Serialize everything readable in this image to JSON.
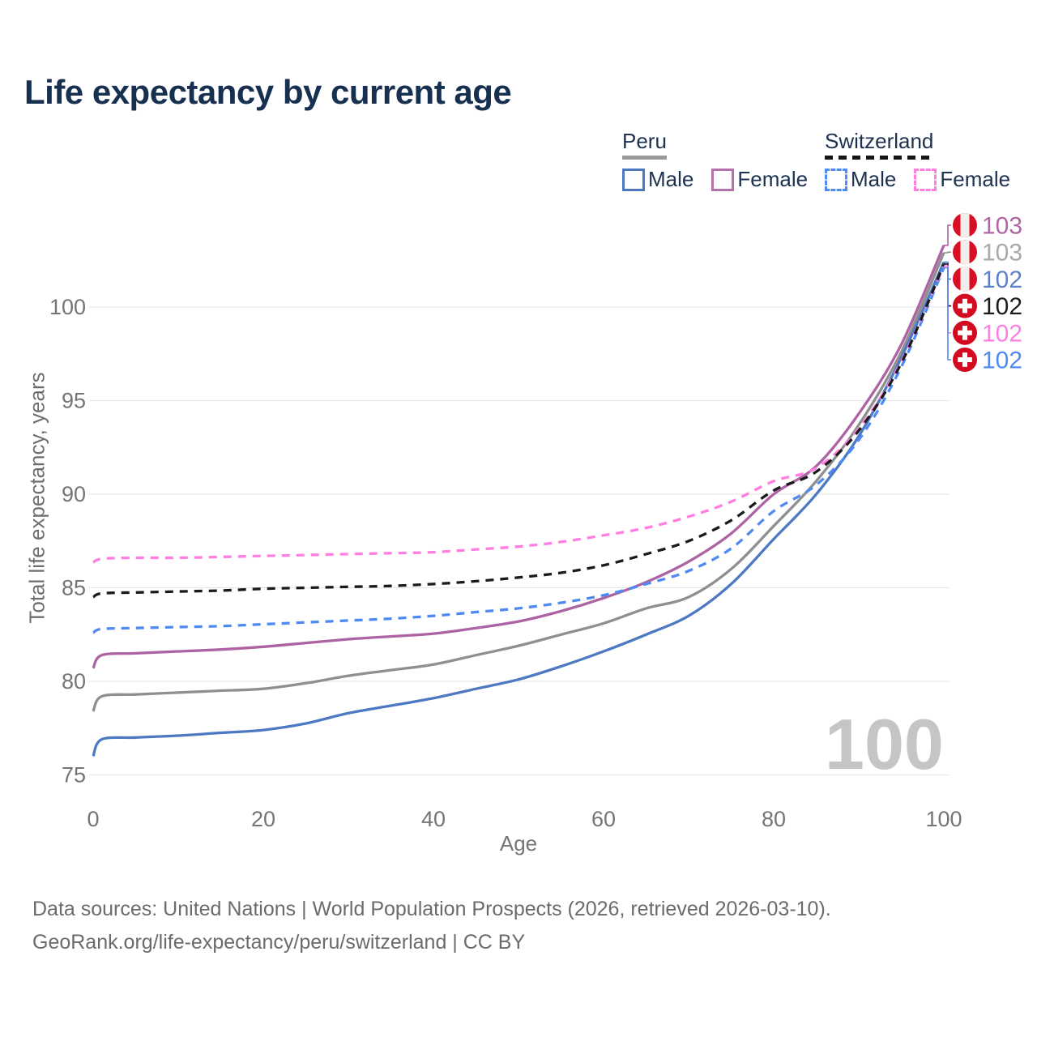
{
  "title": "Life expectancy by current age",
  "legend": {
    "position": "top-right",
    "groups": [
      {
        "country": "Peru",
        "line_style": "solid",
        "underline_color": "#9a9a9a",
        "items": [
          {
            "label": "Male",
            "color": "#4d79c2"
          },
          {
            "label": "Female",
            "color": "#b471ac"
          }
        ]
      },
      {
        "country": "Switzerland",
        "line_style": "dashed",
        "underline_color": "#151515",
        "items": [
          {
            "label": "Male",
            "color": "#4f8af2"
          },
          {
            "label": "Female",
            "color": "#ff7ee2"
          }
        ]
      }
    ]
  },
  "chart_data": {
    "type": "line",
    "title": "Life expectancy by current age",
    "xlabel": "Age",
    "ylabel": "Total life expectancy, years",
    "xlim": [
      0,
      100
    ],
    "ylim": [
      75,
      103.5
    ],
    "x_ticks": [
      0,
      20,
      40,
      60,
      80,
      100
    ],
    "y_ticks": [
      75,
      80,
      85,
      90,
      95,
      100
    ],
    "grid": "horizontal-only",
    "legend_position": "top-right",
    "watermark": "100",
    "x": [
      0,
      1,
      5,
      10,
      15,
      20,
      25,
      30,
      35,
      40,
      45,
      50,
      55,
      60,
      65,
      70,
      75,
      80,
      85,
      90,
      95,
      100
    ],
    "series": [
      {
        "name": "Peru Female",
        "id": "peru-female",
        "country": "Peru",
        "sex": "Female",
        "style": "solid",
        "color": "#ad62a3",
        "values": [
          80.7,
          81.4,
          81.5,
          81.6,
          81.7,
          81.85,
          82.05,
          82.25,
          82.4,
          82.55,
          82.85,
          83.2,
          83.75,
          84.45,
          85.3,
          86.4,
          87.9,
          90.0,
          91.5,
          94.3,
          98.0,
          103.3
        ]
      },
      {
        "name": "Peru",
        "id": "peru-all",
        "country": "Peru",
        "sex": "Both",
        "style": "solid",
        "color": "#8f8f8f",
        "values": [
          78.4,
          79.2,
          79.3,
          79.4,
          79.5,
          79.6,
          79.9,
          80.3,
          80.6,
          80.9,
          81.4,
          81.9,
          82.5,
          83.1,
          83.9,
          84.5,
          86.0,
          88.3,
          90.7,
          93.7,
          97.6,
          102.9
        ]
      },
      {
        "name": "Peru Male",
        "id": "peru-male",
        "country": "Peru",
        "sex": "Male",
        "style": "solid",
        "color": "#4d79c2",
        "values": [
          76.0,
          76.9,
          77.0,
          77.1,
          77.25,
          77.4,
          77.75,
          78.3,
          78.7,
          79.1,
          79.6,
          80.1,
          80.8,
          81.6,
          82.5,
          83.5,
          85.2,
          87.6,
          90.0,
          93.1,
          97.3,
          102.4
        ]
      },
      {
        "name": "Switzerland",
        "id": "swiss-all",
        "country": "Switzerland",
        "sex": "Both",
        "style": "dashed",
        "color": "#1a1a1a",
        "values": [
          84.5,
          84.7,
          84.75,
          84.8,
          84.85,
          84.95,
          85.0,
          85.05,
          85.1,
          85.2,
          85.35,
          85.55,
          85.8,
          86.2,
          86.8,
          87.5,
          88.6,
          90.2,
          91.2,
          93.4,
          97.0,
          102.3
        ]
      },
      {
        "name": "Switzerland Female",
        "id": "swiss-female",
        "country": "Switzerland",
        "sex": "Female",
        "style": "dashed",
        "color": "#ff7ee2",
        "values": [
          86.35,
          86.55,
          86.6,
          86.6,
          86.65,
          86.7,
          86.75,
          86.8,
          86.85,
          86.9,
          87.05,
          87.2,
          87.45,
          87.8,
          88.2,
          88.8,
          89.6,
          90.7,
          91.4,
          93.5,
          97.1,
          102.2
        ]
      },
      {
        "name": "Switzerland Male",
        "id": "swiss-male",
        "country": "Switzerland",
        "sex": "Male",
        "style": "dashed",
        "color": "#4f8af2",
        "values": [
          82.6,
          82.8,
          82.85,
          82.9,
          82.95,
          83.05,
          83.15,
          83.25,
          83.35,
          83.5,
          83.7,
          83.9,
          84.2,
          84.6,
          85.2,
          85.9,
          87.1,
          89.1,
          90.5,
          92.9,
          96.8,
          102.1
        ]
      }
    ],
    "end_labels": [
      {
        "series_id": "peru-female",
        "text": "103",
        "flag": "peru",
        "color": "#b264a8"
      },
      {
        "series_id": "peru-all",
        "text": "103",
        "flag": "peru",
        "color": "#a9a9a9"
      },
      {
        "series_id": "peru-male",
        "text": "102",
        "flag": "peru",
        "color": "#5b82c8"
      },
      {
        "series_id": "swiss-all",
        "text": "102",
        "flag": "switzerland",
        "color": "#1c1c1c"
      },
      {
        "series_id": "swiss-female",
        "text": "102",
        "flag": "switzerland",
        "color": "#ff7ee2"
      },
      {
        "series_id": "swiss-male",
        "text": "102",
        "flag": "switzerland",
        "color": "#4f8af2"
      }
    ]
  },
  "colors": {
    "title": "#17304f",
    "legend_text": "#1d3150",
    "axis_text": "#757575",
    "gridline": "#e7e7e7",
    "watermark": "#c5c5c5",
    "footer_text": "#6b6b6b",
    "peru_flag_red": "#d91023",
    "swiss_flag_red": "#d30b20"
  },
  "footer": {
    "line1": "Data sources: United Nations | World Population Prospects (2026, retrieved 2026-03-10).",
    "line2": "GeoRank.org/life-expectancy/peru/switzerland | CC BY"
  }
}
